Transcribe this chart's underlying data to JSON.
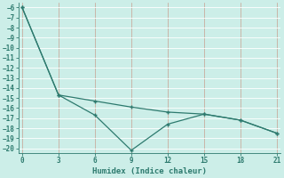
{
  "line1_x": [
    0,
    3,
    6,
    9,
    12,
    15,
    18,
    21
  ],
  "line1_y": [
    -6,
    -14.7,
    -16.7,
    -20.2,
    -17.6,
    -16.6,
    -17.2,
    -18.5
  ],
  "line2_x": [
    0,
    3,
    6,
    9,
    12,
    15,
    18,
    21
  ],
  "line2_y": [
    -6,
    -14.7,
    -15.3,
    -15.9,
    -16.4,
    -16.6,
    -17.2,
    -18.5
  ],
  "line_color": "#2d7a6e",
  "background_color": "#cceee8",
  "vgrid_color": "#c8a090",
  "hgrid_color": "#b8d8d4",
  "xlabel": "Humidex (Indice chaleur)",
  "xlim": [
    -0.3,
    21.3
  ],
  "ylim": [
    -20.5,
    -5.5
  ],
  "xticks": [
    0,
    3,
    6,
    9,
    12,
    15,
    18,
    21
  ],
  "yticks": [
    -6,
    -7,
    -8,
    -9,
    -10,
    -11,
    -12,
    -13,
    -14,
    -15,
    -16,
    -17,
    -18,
    -19,
    -20
  ],
  "figsize": [
    3.2,
    2.0
  ],
  "dpi": 100
}
